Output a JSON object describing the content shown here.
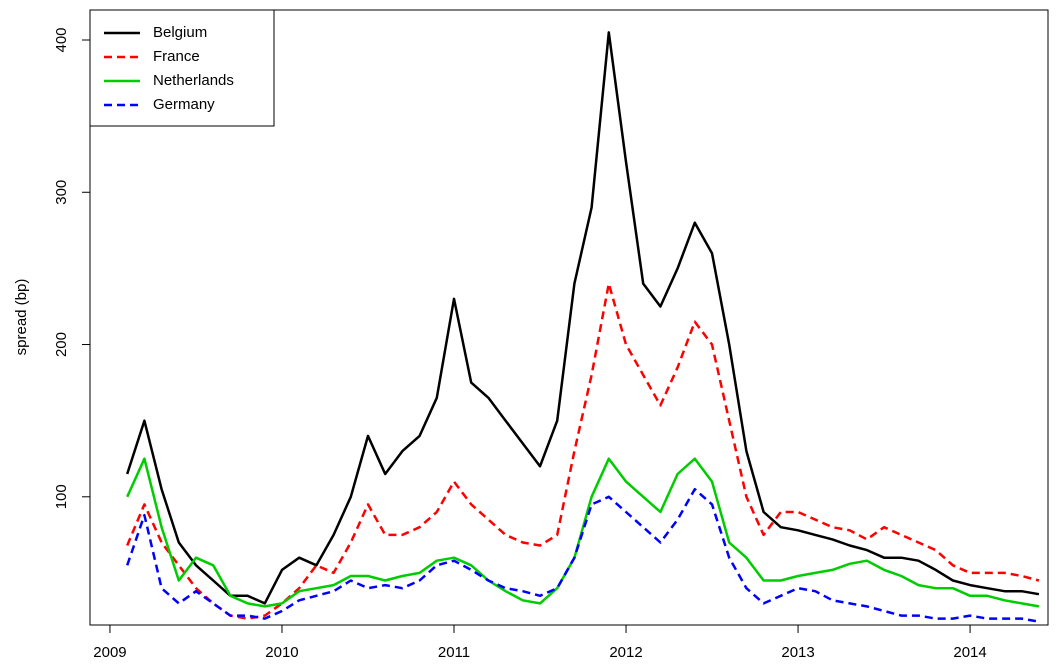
{
  "chart_data": {
    "type": "line",
    "y_label": "spread (bp)",
    "x": [
      2009.1,
      2009.2,
      2009.3,
      2009.4,
      2009.5,
      2009.6,
      2009.7,
      2009.8,
      2009.9,
      2010.0,
      2010.1,
      2010.2,
      2010.3,
      2010.4,
      2010.5,
      2010.6,
      2010.7,
      2010.8,
      2010.9,
      2011.0,
      2011.1,
      2011.2,
      2011.3,
      2011.4,
      2011.5,
      2011.6,
      2011.7,
      2011.8,
      2011.9,
      2012.0,
      2012.1,
      2012.2,
      2012.3,
      2012.4,
      2012.5,
      2012.6,
      2012.7,
      2012.8,
      2012.9,
      2013.0,
      2013.1,
      2013.2,
      2013.3,
      2013.4,
      2013.5,
      2013.6,
      2013.7,
      2013.8,
      2013.9,
      2014.0,
      2014.1,
      2014.2,
      2014.3,
      2014.4
    ],
    "series": [
      {
        "name": "Belgium",
        "color": "#000000",
        "dashed": false,
        "values": [
          115,
          150,
          105,
          70,
          55,
          45,
          35,
          35,
          30,
          52,
          60,
          55,
          75,
          100,
          140,
          115,
          130,
          140,
          165,
          230,
          175,
          165,
          150,
          135,
          120,
          150,
          240,
          290,
          405,
          320,
          240,
          225,
          250,
          280,
          260,
          200,
          130,
          90,
          80,
          78,
          75,
          72,
          68,
          65,
          60,
          60,
          58,
          52,
          45,
          42,
          40,
          38,
          38,
          36
        ]
      },
      {
        "name": "France",
        "color": "#ff0000",
        "dashed": true,
        "values": [
          68,
          95,
          70,
          55,
          40,
          30,
          22,
          20,
          22,
          30,
          40,
          55,
          50,
          70,
          95,
          75,
          75,
          80,
          90,
          110,
          95,
          85,
          75,
          70,
          68,
          75,
          130,
          180,
          240,
          200,
          180,
          160,
          185,
          215,
          200,
          150,
          100,
          75,
          90,
          90,
          85,
          80,
          78,
          72,
          80,
          75,
          70,
          65,
          55,
          50,
          50,
          50,
          48,
          45
        ]
      },
      {
        "name": "Netherlands",
        "color": "#00cc00",
        "dashed": false,
        "values": [
          100,
          125,
          80,
          45,
          60,
          55,
          35,
          30,
          28,
          30,
          38,
          40,
          42,
          48,
          48,
          45,
          48,
          50,
          58,
          60,
          55,
          45,
          38,
          32,
          30,
          40,
          60,
          100,
          125,
          110,
          100,
          90,
          115,
          125,
          110,
          70,
          60,
          45,
          45,
          48,
          50,
          52,
          56,
          58,
          52,
          48,
          42,
          40,
          40,
          35,
          35,
          32,
          30,
          28
        ]
      },
      {
        "name": "Germany",
        "color": "#0000ff",
        "dashed": true,
        "values": [
          55,
          88,
          40,
          30,
          38,
          30,
          22,
          22,
          20,
          25,
          32,
          35,
          38,
          45,
          40,
          42,
          40,
          45,
          55,
          58,
          52,
          45,
          40,
          38,
          35,
          40,
          60,
          95,
          100,
          90,
          80,
          70,
          85,
          105,
          95,
          60,
          40,
          30,
          35,
          40,
          38,
          32,
          30,
          28,
          25,
          22,
          22,
          20,
          20,
          22,
          20,
          20,
          20,
          18
        ]
      }
    ],
    "xlim": [
      2008.884,
      2014.453
    ],
    "xticks": [
      2009,
      2010,
      2011,
      2012,
      2013,
      2014
    ],
    "ylim": [
      15.8,
      419.7
    ],
    "yticks": [
      100,
      200,
      300,
      400
    ],
    "legend": "top-left"
  }
}
